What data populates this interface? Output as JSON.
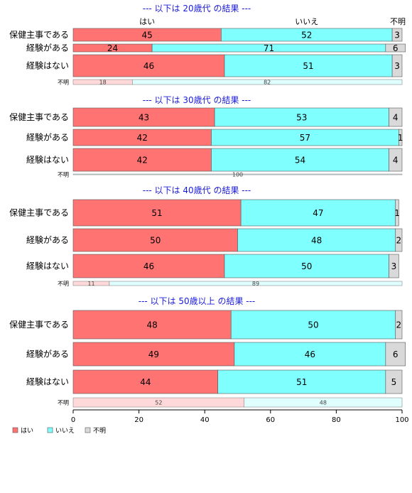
{
  "chart_data": {
    "type": "bar",
    "orientation": "horizontal",
    "stacked": true,
    "legend_position": "bottom-left",
    "xlim": [
      0,
      100
    ],
    "x_ticks": [
      0,
      20,
      40,
      60,
      80,
      100
    ],
    "series": [
      {
        "name": "はい",
        "color": "#ff7373"
      },
      {
        "name": "いいえ",
        "color": "#80ffff"
      },
      {
        "name": "不明",
        "color": "#d9d9d9"
      }
    ],
    "header_labels": [
      "はい",
      "いいえ",
      "不明"
    ],
    "panels": [
      {
        "title": "--- 以下は 20歳代 の結果 ---",
        "categories": [
          "保健主事である",
          "経験がある",
          "経験はない"
        ],
        "values": [
          [
            45,
            52,
            3
          ],
          [
            24,
            71,
            6
          ],
          [
            46,
            51,
            3
          ]
        ],
        "unknown_row": {
          "label": "不明",
          "values": [
            18,
            82
          ]
        }
      },
      {
        "title": "--- 以下は 30歳代 の結果 ---",
        "categories": [
          "保健主事である",
          "経験がある",
          "経験はない"
        ],
        "values": [
          [
            43,
            53,
            4
          ],
          [
            42,
            57,
            1
          ],
          [
            42,
            54,
            4
          ]
        ],
        "unknown_row": {
          "label": "不明",
          "values": [
            0,
            100
          ]
        }
      },
      {
        "title": "--- 以下は 40歳代 の結果 ---",
        "categories": [
          "保健主事である",
          "経験がある",
          "経験はない"
        ],
        "values": [
          [
            51,
            47,
            1
          ],
          [
            50,
            48,
            2
          ],
          [
            46,
            50,
            3
          ]
        ],
        "unknown_row": {
          "label": "不明",
          "values": [
            11,
            89
          ]
        }
      },
      {
        "title": "--- 以下は 50歳以上 の結果 ---",
        "categories": [
          "保健主事である",
          "経験がある",
          "経験はない"
        ],
        "values": [
          [
            48,
            50,
            2
          ],
          [
            49,
            46,
            6
          ],
          [
            44,
            51,
            5
          ]
        ],
        "unknown_row": {
          "label": "不明",
          "values": [
            52,
            48
          ]
        }
      }
    ]
  }
}
